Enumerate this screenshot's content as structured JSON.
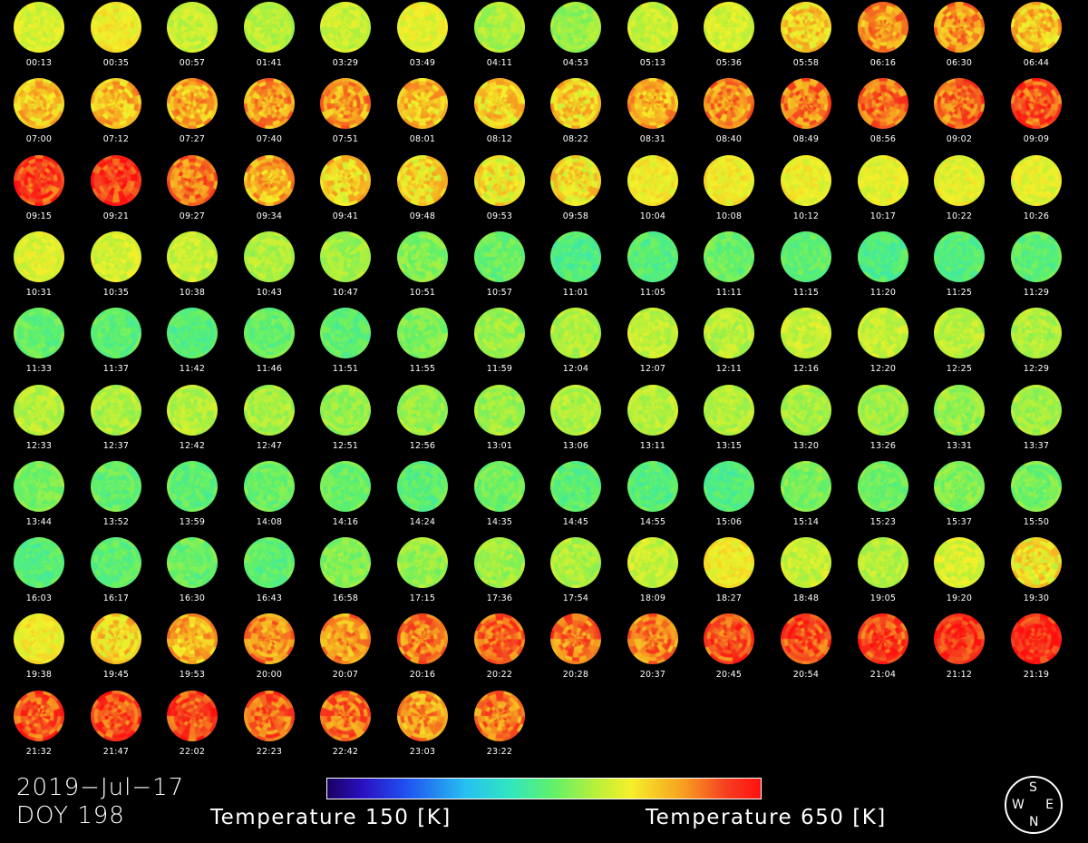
{
  "date": "2019−Jul−17",
  "doy": "DOY 198",
  "colorbar": {
    "min_label": "Temperature 150 [K]",
    "max_label": "Temperature 650 [K]",
    "min_kelvin": 150,
    "max_kelvin": 650
  },
  "compass": {
    "top": "S",
    "bottom": "N",
    "left": "W",
    "right": "E"
  },
  "frames": [
    {
      "time": "00:13",
      "mean_kelvin": 480
    },
    {
      "time": "00:35",
      "mean_kelvin": 500
    },
    {
      "time": "00:57",
      "mean_kelvin": 470
    },
    {
      "time": "01:41",
      "mean_kelvin": 460
    },
    {
      "time": "03:29",
      "mean_kelvin": 470
    },
    {
      "time": "03:49",
      "mean_kelvin": 490
    },
    {
      "time": "04:11",
      "mean_kelvin": 455
    },
    {
      "time": "04:53",
      "mean_kelvin": 440
    },
    {
      "time": "05:13",
      "mean_kelvin": 470
    },
    {
      "time": "05:36",
      "mean_kelvin": 480
    },
    {
      "time": "05:58",
      "mean_kelvin": 520
    },
    {
      "time": "06:16",
      "mean_kelvin": 560
    },
    {
      "time": "06:30",
      "mean_kelvin": 560
    },
    {
      "time": "06:44",
      "mean_kelvin": 530
    },
    {
      "time": "07:00",
      "mean_kelvin": 530
    },
    {
      "time": "07:12",
      "mean_kelvin": 535
    },
    {
      "time": "07:27",
      "mean_kelvin": 545
    },
    {
      "time": "07:40",
      "mean_kelvin": 555
    },
    {
      "time": "07:51",
      "mean_kelvin": 555
    },
    {
      "time": "08:01",
      "mean_kelvin": 530
    },
    {
      "time": "08:12",
      "mean_kelvin": 520
    },
    {
      "time": "08:22",
      "mean_kelvin": 520
    },
    {
      "time": "08:31",
      "mean_kelvin": 545
    },
    {
      "time": "08:40",
      "mean_kelvin": 565
    },
    {
      "time": "08:49",
      "mean_kelvin": 575
    },
    {
      "time": "08:56",
      "mean_kelvin": 585
    },
    {
      "time": "09:02",
      "mean_kelvin": 585
    },
    {
      "time": "09:09",
      "mean_kelvin": 600
    },
    {
      "time": "09:15",
      "mean_kelvin": 610
    },
    {
      "time": "09:21",
      "mean_kelvin": 615
    },
    {
      "time": "09:27",
      "mean_kelvin": 580
    },
    {
      "time": "09:34",
      "mean_kelvin": 545
    },
    {
      "time": "09:41",
      "mean_kelvin": 520
    },
    {
      "time": "09:48",
      "mean_kelvin": 515
    },
    {
      "time": "09:53",
      "mean_kelvin": 505
    },
    {
      "time": "09:58",
      "mean_kelvin": 510
    },
    {
      "time": "10:04",
      "mean_kelvin": 500
    },
    {
      "time": "10:08",
      "mean_kelvin": 500
    },
    {
      "time": "10:12",
      "mean_kelvin": 495
    },
    {
      "time": "10:17",
      "mean_kelvin": 490
    },
    {
      "time": "10:22",
      "mean_kelvin": 490
    },
    {
      "time": "10:26",
      "mean_kelvin": 490
    },
    {
      "time": "10:31",
      "mean_kelvin": 485
    },
    {
      "time": "10:35",
      "mean_kelvin": 480
    },
    {
      "time": "10:38",
      "mean_kelvin": 470
    },
    {
      "time": "10:43",
      "mean_kelvin": 455
    },
    {
      "time": "10:47",
      "mean_kelvin": 445
    },
    {
      "time": "10:51",
      "mean_kelvin": 430
    },
    {
      "time": "10:57",
      "mean_kelvin": 415
    },
    {
      "time": "11:01",
      "mean_kelvin": 395
    },
    {
      "time": "11:05",
      "mean_kelvin": 400
    },
    {
      "time": "11:11",
      "mean_kelvin": 415
    },
    {
      "time": "11:15",
      "mean_kelvin": 410
    },
    {
      "time": "11:20",
      "mean_kelvin": 395
    },
    {
      "time": "11:25",
      "mean_kelvin": 400
    },
    {
      "time": "11:29",
      "mean_kelvin": 405
    },
    {
      "time": "11:33",
      "mean_kelvin": 410
    },
    {
      "time": "11:37",
      "mean_kelvin": 405
    },
    {
      "time": "11:42",
      "mean_kelvin": 400
    },
    {
      "time": "11:46",
      "mean_kelvin": 410
    },
    {
      "time": "11:51",
      "mean_kelvin": 405
    },
    {
      "time": "11:55",
      "mean_kelvin": 425
    },
    {
      "time": "11:59",
      "mean_kelvin": 445
    },
    {
      "time": "12:04",
      "mean_kelvin": 455
    },
    {
      "time": "12:07",
      "mean_kelvin": 465
    },
    {
      "time": "12:11",
      "mean_kelvin": 460
    },
    {
      "time": "12:16",
      "mean_kelvin": 470
    },
    {
      "time": "12:20",
      "mean_kelvin": 470
    },
    {
      "time": "12:25",
      "mean_kelvin": 460
    },
    {
      "time": "12:29",
      "mean_kelvin": 455
    },
    {
      "time": "12:33",
      "mean_kelvin": 460
    },
    {
      "time": "12:37",
      "mean_kelvin": 455
    },
    {
      "time": "12:42",
      "mean_kelvin": 460
    },
    {
      "time": "12:47",
      "mean_kelvin": 450
    },
    {
      "time": "12:51",
      "mean_kelvin": 440
    },
    {
      "time": "12:56",
      "mean_kelvin": 440
    },
    {
      "time": "13:01",
      "mean_kelvin": 445
    },
    {
      "time": "13:06",
      "mean_kelvin": 455
    },
    {
      "time": "13:11",
      "mean_kelvin": 460
    },
    {
      "time": "13:15",
      "mean_kelvin": 460
    },
    {
      "time": "13:20",
      "mean_kelvin": 450
    },
    {
      "time": "13:26",
      "mean_kelvin": 445
    },
    {
      "time": "13:31",
      "mean_kelvin": 440
    },
    {
      "time": "13:37",
      "mean_kelvin": 445
    },
    {
      "time": "13:44",
      "mean_kelvin": 425
    },
    {
      "time": "13:52",
      "mean_kelvin": 410
    },
    {
      "time": "13:59",
      "mean_kelvin": 405
    },
    {
      "time": "14:08",
      "mean_kelvin": 415
    },
    {
      "time": "14:16",
      "mean_kelvin": 415
    },
    {
      "time": "14:24",
      "mean_kelvin": 405
    },
    {
      "time": "14:35",
      "mean_kelvin": 420
    },
    {
      "time": "14:45",
      "mean_kelvin": 405
    },
    {
      "time": "14:55",
      "mean_kelvin": 400
    },
    {
      "time": "15:06",
      "mean_kelvin": 395
    },
    {
      "time": "15:14",
      "mean_kelvin": 425
    },
    {
      "time": "15:23",
      "mean_kelvin": 415
    },
    {
      "time": "15:37",
      "mean_kelvin": 430
    },
    {
      "time": "15:50",
      "mean_kelvin": 420
    },
    {
      "time": "16:03",
      "mean_kelvin": 400
    },
    {
      "time": "16:17",
      "mean_kelvin": 405
    },
    {
      "time": "16:30",
      "mean_kelvin": 415
    },
    {
      "time": "16:43",
      "mean_kelvin": 405
    },
    {
      "time": "16:58",
      "mean_kelvin": 430
    },
    {
      "time": "17:15",
      "mean_kelvin": 440
    },
    {
      "time": "17:36",
      "mean_kelvin": 445
    },
    {
      "time": "17:54",
      "mean_kelvin": 455
    },
    {
      "time": "18:09",
      "mean_kelvin": 470
    },
    {
      "time": "18:27",
      "mean_kelvin": 500
    },
    {
      "time": "18:48",
      "mean_kelvin": 470
    },
    {
      "time": "19:05",
      "mean_kelvin": 460
    },
    {
      "time": "19:20",
      "mean_kelvin": 480
    },
    {
      "time": "19:30",
      "mean_kelvin": 505
    },
    {
      "time": "19:38",
      "mean_kelvin": 500
    },
    {
      "time": "19:45",
      "mean_kelvin": 520
    },
    {
      "time": "19:53",
      "mean_kelvin": 540
    },
    {
      "time": "20:00",
      "mean_kelvin": 565
    },
    {
      "time": "20:07",
      "mean_kelvin": 560
    },
    {
      "time": "20:16",
      "mean_kelvin": 575
    },
    {
      "time": "20:22",
      "mean_kelvin": 590
    },
    {
      "time": "20:28",
      "mean_kelvin": 580
    },
    {
      "time": "20:37",
      "mean_kelvin": 575
    },
    {
      "time": "20:45",
      "mean_kelvin": 600
    },
    {
      "time": "20:54",
      "mean_kelvin": 605
    },
    {
      "time": "21:04",
      "mean_kelvin": 610
    },
    {
      "time": "21:12",
      "mean_kelvin": 625
    },
    {
      "time": "21:19",
      "mean_kelvin": 630
    },
    {
      "time": "21:32",
      "mean_kelvin": 600
    },
    {
      "time": "21:47",
      "mean_kelvin": 605
    },
    {
      "time": "22:02",
      "mean_kelvin": 605
    },
    {
      "time": "22:23",
      "mean_kelvin": 590
    },
    {
      "time": "22:42",
      "mean_kelvin": 585
    },
    {
      "time": "23:03",
      "mean_kelvin": 560
    },
    {
      "time": "23:22",
      "mean_kelvin": 575
    }
  ]
}
